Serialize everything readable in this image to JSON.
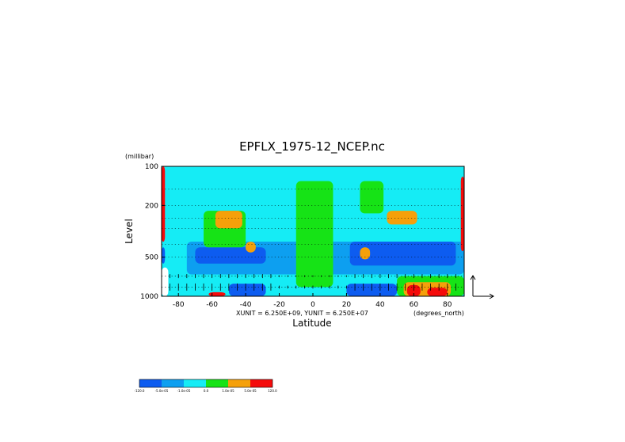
{
  "chart_data": {
    "type": "heatmap",
    "title": "EPFLX_1975-12_NCEP.nc",
    "xlabel": "Latitude",
    "ylabel": "Level",
    "yunits": "(millibar)",
    "xunits": "(degrees_north)",
    "unit_note": "XUNIT = 6.250E+09, YUNIT = 6.250E+07",
    "xlim": [
      -90,
      90
    ],
    "ylim": [
      1000,
      100
    ],
    "y_scale": "log (reversed)",
    "x_ticks": [
      "-80",
      "-60",
      "-40",
      "-20",
      "0",
      "20",
      "40",
      "60",
      "80"
    ],
    "x_tick_values": [
      -80,
      -60,
      -40,
      -20,
      0,
      20,
      40,
      60,
      80
    ],
    "y_ticks": [
      "100",
      "200",
      "500",
      "1000"
    ],
    "y_tick_values": [
      100,
      200,
      500,
      1000
    ],
    "levels_mb": [
      1000,
      850,
      700,
      500,
      400,
      300,
      250,
      200,
      150,
      100
    ],
    "colorbar": {
      "labels": [
        "-120.0",
        "-5.0e-05",
        "-1.0e-05",
        "0.0",
        "1.0e-05",
        "5.0e-05",
        "120.0"
      ],
      "colors": [
        "#0d5cf0",
        "#0d9ff0",
        "#15ecf5",
        "#16e316",
        "#f5a00a",
        "#f50b0b"
      ]
    },
    "regions": [
      {
        "color": "#15ecf5",
        "lat": [
          -90,
          90
        ],
        "mb": [
          100,
          1000
        ],
        "note": "background"
      },
      {
        "color": "#0d9ff0",
        "lat": [
          -75,
          90
        ],
        "mb": [
          380,
          680
        ]
      },
      {
        "color": "#0d5cf0",
        "lat": [
          -70,
          -28
        ],
        "mb": [
          420,
          560
        ]
      },
      {
        "color": "#0d5cf0",
        "lat": [
          22,
          85
        ],
        "mb": [
          380,
          580
        ]
      },
      {
        "color": "#16e316",
        "lat": [
          -10,
          12
        ],
        "mb": [
          130,
          850
        ]
      },
      {
        "color": "#16e316",
        "lat": [
          -65,
          -40
        ],
        "mb": [
          220,
          420
        ]
      },
      {
        "color": "#f5a00a",
        "lat": [
          -58,
          -42
        ],
        "mb": [
          220,
          300
        ]
      },
      {
        "color": "#f5a00a",
        "lat": [
          -40,
          -34
        ],
        "mb": [
          380,
          460
        ]
      },
      {
        "color": "#16e316",
        "lat": [
          28,
          42
        ],
        "mb": [
          130,
          230
        ]
      },
      {
        "color": "#f5a00a",
        "lat": [
          44,
          62
        ],
        "mb": [
          220,
          280
        ]
      },
      {
        "color": "#f5a00a",
        "lat": [
          28,
          34
        ],
        "mb": [
          420,
          520
        ]
      },
      {
        "color": "#16e316",
        "lat": [
          50,
          90
        ],
        "mb": [
          700,
          1000
        ]
      },
      {
        "color": "#f5a00a",
        "lat": [
          54,
          82
        ],
        "mb": [
          780,
          1000
        ]
      },
      {
        "color": "#f50b0b",
        "lat": [
          56,
          64
        ],
        "mb": [
          820,
          1000
        ]
      },
      {
        "color": "#f50b0b",
        "lat": [
          68,
          80
        ],
        "mb": [
          860,
          1000
        ]
      },
      {
        "color": "#f50b0b",
        "lat": [
          -62,
          -52
        ],
        "mb": [
          930,
          1000
        ]
      },
      {
        "color": "#0d5cf0",
        "lat": [
          -50,
          -28
        ],
        "mb": [
          800,
          1000
        ]
      },
      {
        "color": "#0d5cf0",
        "lat": [
          20,
          50
        ],
        "mb": [
          800,
          1000
        ]
      },
      {
        "color": "#f50b0b",
        "lat": [
          -90,
          -88
        ],
        "mb": [
          100,
          380
        ]
      },
      {
        "color": "#0d5cf0",
        "lat": [
          -90,
          -88
        ],
        "mb": [
          420,
          560
        ]
      },
      {
        "color": "#f50b0b",
        "lat": [
          88,
          90
        ],
        "mb": [
          120,
          450
        ]
      },
      {
        "color": "#ffffff",
        "lat": [
          -90,
          -86
        ],
        "mb": [
          600,
          1000
        ]
      }
    ]
  }
}
